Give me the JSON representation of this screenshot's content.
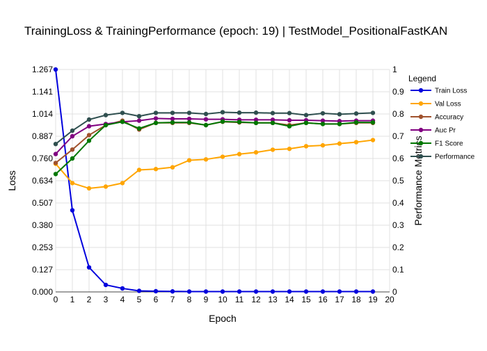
{
  "chart_data": {
    "type": "line",
    "title": "TrainingLoss & TrainingPerformance (epoch: 19) | TestModel_PositionalFastKAN",
    "xlabel": "Epoch",
    "ylabel_left": "Loss",
    "ylabel_right": "Performance Metrics",
    "xlim": [
      0,
      20
    ],
    "ylim_left": [
      0,
      1.267
    ],
    "ylim_right": [
      0,
      1
    ],
    "x_ticks": [
      "0",
      "1",
      "2",
      "3",
      "4",
      "5",
      "6",
      "7",
      "8",
      "9",
      "10",
      "11",
      "12",
      "13",
      "14",
      "15",
      "16",
      "17",
      "18",
      "19",
      "20"
    ],
    "y_left_ticks": [
      "0.000",
      "0.127",
      "0.253",
      "0.380",
      "0.507",
      "0.634",
      "0.760",
      "0.887",
      "1.014",
      "1.141",
      "1.267"
    ],
    "y_right_ticks": [
      "0",
      "0.1",
      "0.2",
      "0.3",
      "0.4",
      "0.5",
      "0.6",
      "0.7",
      "0.8",
      "0.9",
      "1"
    ],
    "grid": true,
    "legend_title": "Legend",
    "legend_position": "right",
    "x": [
      0,
      1,
      2,
      3,
      4,
      5,
      6,
      7,
      8,
      9,
      10,
      11,
      12,
      13,
      14,
      15,
      16,
      17,
      18,
      19
    ],
    "series": [
      {
        "name": "Train Loss",
        "axis": "left",
        "color": "#0000dd",
        "values": [
          1.267,
          0.465,
          0.14,
          0.04,
          0.02,
          0.006,
          0.004,
          0.003,
          0.002,
          0.002,
          0.002,
          0.002,
          0.002,
          0.002,
          0.002,
          0.002,
          0.002,
          0.002,
          0.002,
          0.002
        ]
      },
      {
        "name": "Val Loss",
        "axis": "left",
        "color": "#ffa500",
        "values": [
          0.73,
          0.62,
          0.59,
          0.6,
          0.62,
          0.695,
          0.7,
          0.71,
          0.75,
          0.755,
          0.77,
          0.785,
          0.795,
          0.81,
          0.815,
          0.83,
          0.835,
          0.845,
          0.853,
          0.865
        ]
      },
      {
        "name": "Accuracy",
        "axis": "right",
        "color": "#a0522d",
        "values": [
          0.58,
          0.64,
          0.705,
          0.75,
          0.77,
          0.73,
          0.76,
          0.76,
          0.76,
          0.75,
          0.765,
          0.762,
          0.76,
          0.76,
          0.75,
          0.76,
          0.755,
          0.755,
          0.76,
          0.76
        ]
      },
      {
        "name": "Auc Pr",
        "axis": "right",
        "color": "#800080",
        "values": [
          0.62,
          0.7,
          0.745,
          0.755,
          0.765,
          0.77,
          0.78,
          0.778,
          0.778,
          0.776,
          0.776,
          0.774,
          0.774,
          0.774,
          0.772,
          0.772,
          0.77,
          0.768,
          0.77,
          0.77
        ]
      },
      {
        "name": "F1 Score",
        "axis": "right",
        "color": "#007700",
        "values": [
          0.53,
          0.6,
          0.68,
          0.75,
          0.765,
          0.735,
          0.76,
          0.762,
          0.762,
          0.75,
          0.766,
          0.764,
          0.76,
          0.76,
          0.745,
          0.76,
          0.755,
          0.755,
          0.762,
          0.762
        ]
      },
      {
        "name": "Performance",
        "axis": "right",
        "color": "#2f4f4f",
        "values": [
          0.665,
          0.725,
          0.775,
          0.795,
          0.805,
          0.79,
          0.805,
          0.805,
          0.805,
          0.8,
          0.808,
          0.806,
          0.806,
          0.804,
          0.804,
          0.795,
          0.803,
          0.799,
          0.802,
          0.805
        ]
      }
    ]
  }
}
